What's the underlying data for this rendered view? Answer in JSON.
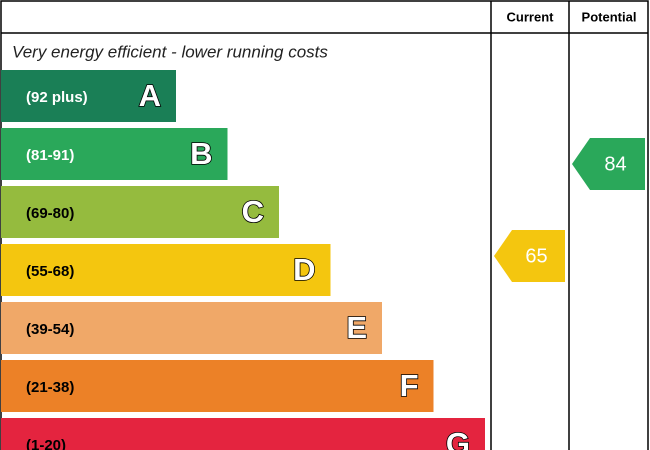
{
  "header": {
    "current": "Current",
    "potential": "Potential"
  },
  "caption": "Very energy efficient - lower running costs",
  "bands": [
    {
      "range": "(92 plus)",
      "letter": "A",
      "color": "#1a7f56",
      "text_color": "#ffffff"
    },
    {
      "range": "(81-91)",
      "letter": "B",
      "color": "#2aa85a",
      "text_color": "#ffffff"
    },
    {
      "range": "(69-80)",
      "letter": "C",
      "color": "#95bb3e",
      "text_color": "#000000"
    },
    {
      "range": "(55-68)",
      "letter": "D",
      "color": "#f4c60f",
      "text_color": "#000000"
    },
    {
      "range": "(39-54)",
      "letter": "E",
      "color": "#f0a868",
      "text_color": "#000000"
    },
    {
      "range": "(21-38)",
      "letter": "F",
      "color": "#ec8127",
      "text_color": "#000000"
    },
    {
      "range": "(1-20)",
      "letter": "G",
      "color": "#e4243f",
      "text_color": "#000000"
    }
  ],
  "current": {
    "value": 65,
    "color": "#f4c60f"
  },
  "potential": {
    "value": 84,
    "color": "#2aa85a"
  }
}
